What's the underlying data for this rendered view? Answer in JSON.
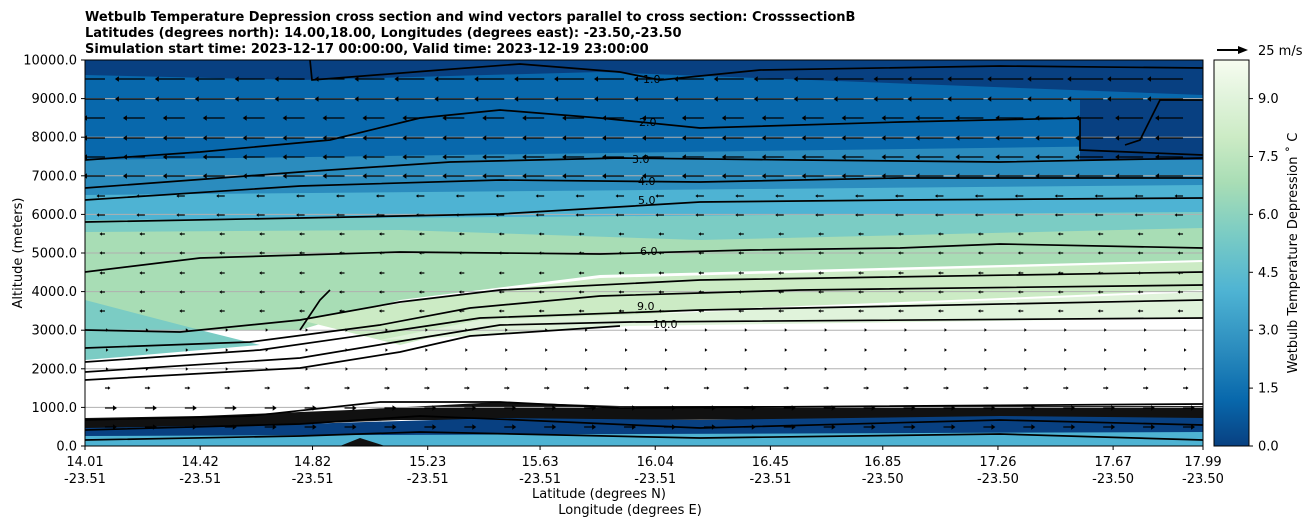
{
  "chart_data": {
    "type": "contour",
    "title": [
      "Wetbulb Temperature Depression cross section and wind vectors parallel to cross section: CrosssectionB",
      "Latitudes (degrees north): 14.00,18.00, Longitudes (degrees east): -23.50,-23.50",
      "Simulation start time: 2023-12-17 00:00:00, Valid time: 2023-12-19 23:00:00"
    ],
    "ylabel": "Altitude (meters)",
    "xlabel_lat": "Latitude (degrees N)",
    "xlabel_lon": "Longitude (degrees E)",
    "ylim": [
      0,
      10000
    ],
    "y_ticks": [
      "0.0",
      "1000.0",
      "2000.0",
      "3000.0",
      "4000.0",
      "5000.0",
      "6000.0",
      "7000.0",
      "8000.0",
      "9000.0",
      "10000.0"
    ],
    "x_ticks": [
      {
        "lat": "14.01",
        "lon": "-23.51"
      },
      {
        "lat": "14.42",
        "lon": "-23.51"
      },
      {
        "lat": "14.82",
        "lon": "-23.51"
      },
      {
        "lat": "15.23",
        "lon": "-23.51"
      },
      {
        "lat": "15.63",
        "lon": "-23.51"
      },
      {
        "lat": "16.04",
        "lon": "-23.51"
      },
      {
        "lat": "16.45",
        "lon": "-23.51"
      },
      {
        "lat": "16.85",
        "lon": "-23.50"
      },
      {
        "lat": "17.26",
        "lon": "-23.50"
      },
      {
        "lat": "17.67",
        "lon": "-23.50"
      },
      {
        "lat": "17.99",
        "lon": "-23.50"
      }
    ],
    "colorbar": {
      "label": "Wetbulb Temperature Depression ˚ C",
      "ticks": [
        "0.0",
        "1.5",
        "3.0",
        "4.5",
        "6.0",
        "7.5",
        "9.0"
      ],
      "range": [
        0,
        10
      ],
      "colors": [
        "#084081",
        "#0868ac",
        "#2b8cbe",
        "#4eb3d3",
        "#7bccc4",
        "#a8ddb5",
        "#ccebc5",
        "#e0f3db",
        "#f7fcf0"
      ]
    },
    "quiver_key": {
      "label": "25 m/s"
    },
    "contour_labels": [
      "1.0",
      "2.0",
      "3.0",
      "4.0",
      "5.0",
      "6.0",
      "9.0",
      "10.0"
    ],
    "grid": true
  }
}
